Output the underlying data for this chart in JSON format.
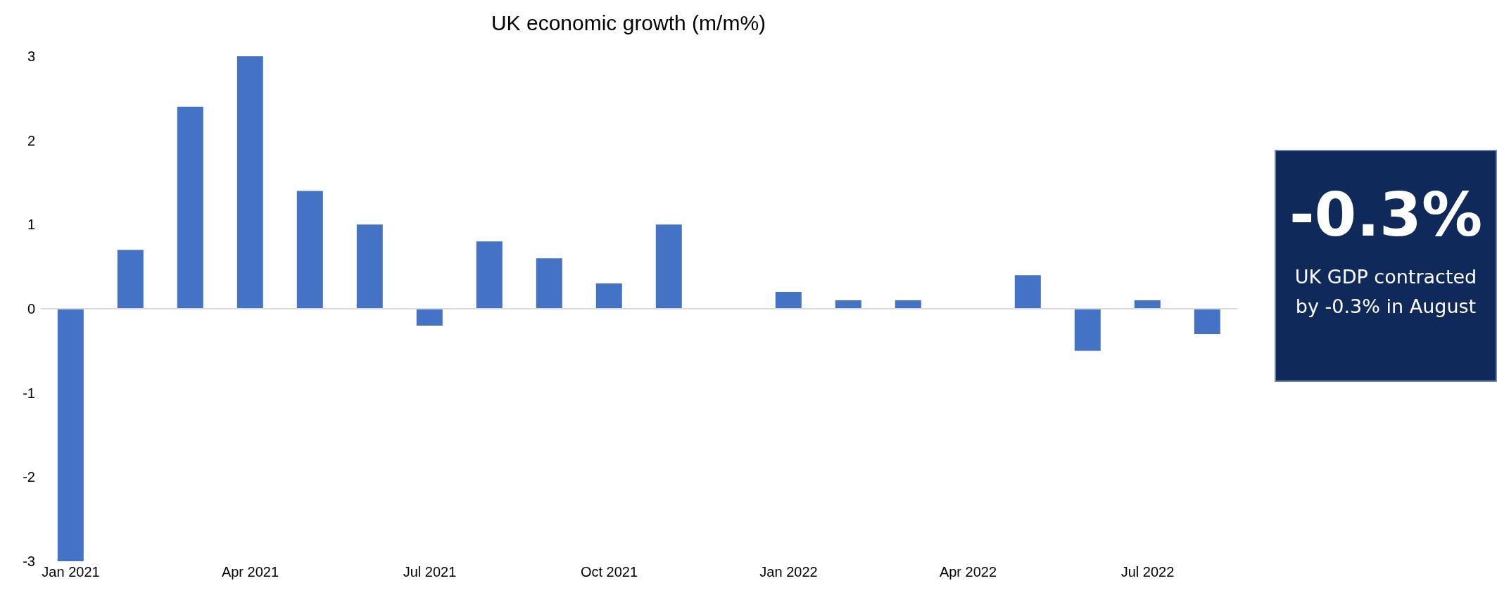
{
  "chart_data": {
    "type": "bar",
    "title": "UK economic growth  (m/m%)",
    "categories": [
      "Jan 2021",
      null,
      null,
      "Apr 2021",
      null,
      null,
      "Jul 2021",
      null,
      null,
      "Oct 2021",
      null,
      null,
      "Jan 2022",
      null,
      null,
      "Apr 2022",
      null,
      null,
      "Jul 2022",
      null
    ],
    "values": [
      -3,
      0.7,
      2.4,
      3,
      1.4,
      1,
      -0.2,
      0.8,
      0.6,
      0.3,
      1,
      0,
      0.2,
      0.1,
      0.1,
      0,
      0.4,
      -0.5,
      0.1,
      -0.3
    ],
    "color": "#4472c4",
    "ylim": [
      -3,
      3
    ],
    "yticks": [
      -3,
      -2,
      -1,
      0,
      1,
      2,
      3
    ],
    "ref_lines": [
      {
        "axis": "y",
        "value": 0,
        "color": "#d9d9d9"
      }
    ],
    "legend": false,
    "annotations": [
      "-0.3%",
      "UK GDP contracted by -0.3% in August"
    ]
  }
}
